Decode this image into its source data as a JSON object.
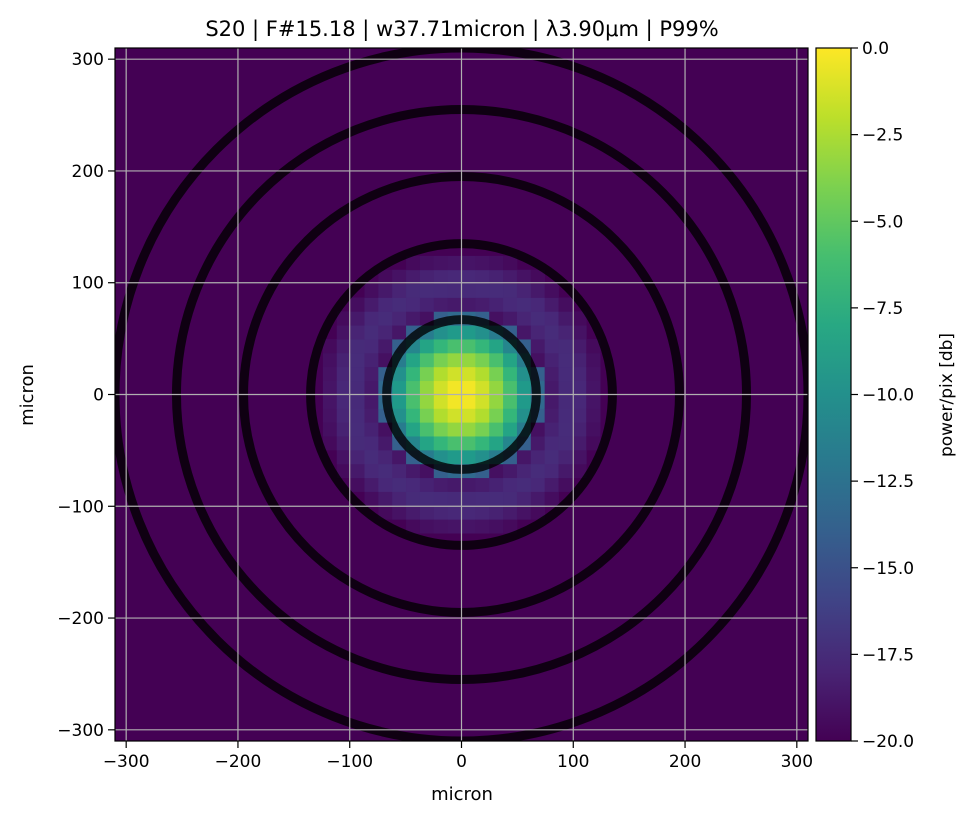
{
  "chart_data": {
    "type": "heatmap",
    "title": "S20 | F#15.18 | w37.71micron | λ3.90μm | P99%",
    "xlabel": "micron",
    "ylabel": "micron",
    "xlim": [
      -310,
      310
    ],
    "ylim": [
      -310,
      310
    ],
    "xticks": [
      -300,
      -200,
      -100,
      0,
      100,
      200,
      300
    ],
    "yticks": [
      -300,
      -200,
      -100,
      0,
      100,
      200,
      300
    ],
    "xtick_labels": [
      "−300",
      "−200",
      "−100",
      "0",
      "100",
      "200",
      "300"
    ],
    "ytick_labels": [
      "−300",
      "−200",
      "−100",
      "0",
      "100",
      "200",
      "300"
    ],
    "grid": true,
    "colormap": "viridis",
    "colorbar": {
      "label": "power/pix [db]",
      "range": [
        -20.0,
        0.0
      ],
      "ticks": [
        0.0,
        -2.5,
        -5.0,
        -7.5,
        -10.0,
        -12.5,
        -15.0,
        -17.5,
        -20.0
      ],
      "tick_labels": [
        "0.0",
        "−2.5",
        "−5.0",
        "−7.5",
        "−10.0",
        "−12.5",
        "−15.0",
        "−17.5",
        "−20.0"
      ]
    },
    "pixel_pitch_micron": 12.4,
    "psf": {
      "peak_db": 0.0,
      "floor_db": -20.0,
      "first_dark_ring_radius_micron": 72,
      "second_ring_peak_radius_micron": 98,
      "second_ring_level_db": -17.5
    },
    "overlay_circles_radius_micron": [
      67,
      135,
      195,
      255,
      310
    ]
  }
}
